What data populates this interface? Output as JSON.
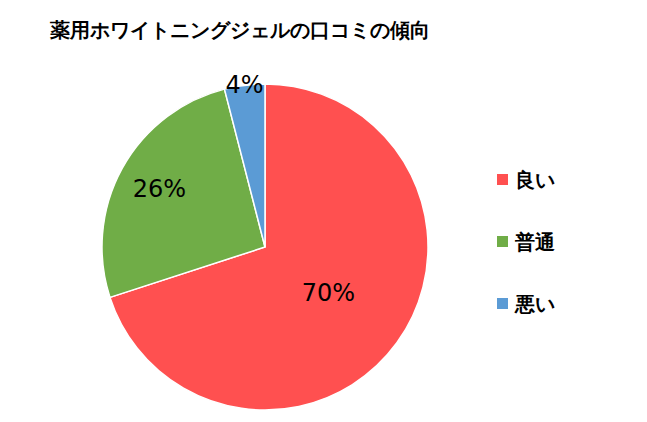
{
  "chart_data": {
    "type": "pie",
    "title": "薬用ホワイトニングジェルの口コミの傾向",
    "categories": [
      "良い",
      "普通",
      "悪い"
    ],
    "values": [
      70,
      26,
      4
    ],
    "value_labels": [
      "70%",
      "26%",
      "4%"
    ],
    "colors": [
      "#ff5050",
      "#70ad47",
      "#5b9bd5"
    ],
    "data_labels": true,
    "legend": "right"
  }
}
